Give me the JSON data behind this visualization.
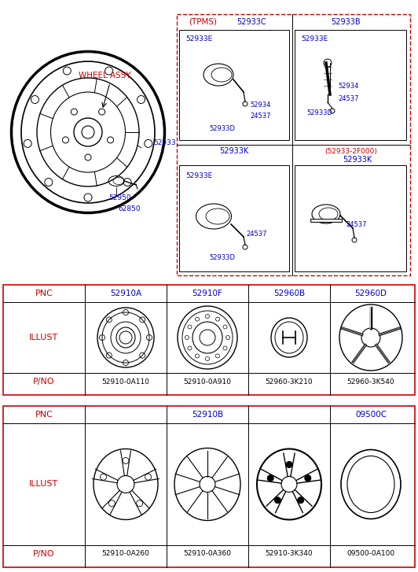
{
  "bg_color": "#ffffff",
  "border_color": "#000000",
  "red_color": "#cc0000",
  "blue_color": "#0000cc",
  "black_color": "#000000",
  "title_tpms": "(TPMS)",
  "wheel_assy_label": "WHEEL ASSY",
  "top_section": {
    "part_labels_top": [
      "52933C",
      "52933B"
    ],
    "box1_parts": [
      "52933E",
      "52934",
      "24537",
      "52933D"
    ],
    "box2_parts": [
      "52933E",
      "52934",
      "24537",
      "52933D"
    ],
    "part_labels_bot": [
      "52933K",
      "(52933-2F000)\n52933K"
    ],
    "box3_parts": [
      "52933E",
      "24537",
      "52933D"
    ],
    "box4_parts": [
      "24537"
    ],
    "main_parts": [
      "52933",
      "52950",
      "62850"
    ]
  },
  "table1": {
    "pnc_label": "PNC",
    "illust_label": "ILLUST",
    "pno_label": "P/NO",
    "cols": [
      "52910A",
      "52910F",
      "52960B",
      "52960D"
    ],
    "pnos": [
      "52910-0A110",
      "52910-0A910",
      "52960-3K210",
      "52960-3K540"
    ]
  },
  "table2": {
    "pnc_label": "PNC",
    "illust_label": "ILLUST",
    "pno_label": "P/NO",
    "cols_span": "52910B",
    "col_last": "09500C",
    "pnos": [
      "52910-0A260",
      "52910-0A360",
      "52910-3K340",
      "09500-0A100"
    ]
  }
}
